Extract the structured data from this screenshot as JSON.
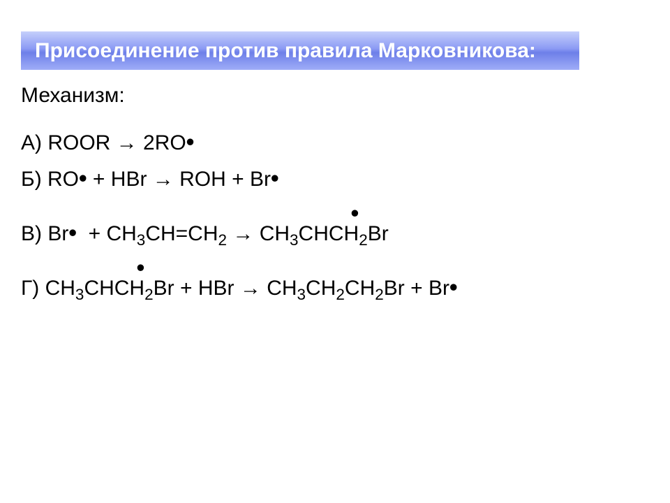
{
  "title_fontsize": 30,
  "content_fontsize": 30,
  "title_bg_gradient": [
    "#c5cffb",
    "#8b9af4",
    "#6d7fe8",
    "#9fadf8"
  ],
  "title_color": "#ffffff",
  "text_color": "#000000",
  "title": "Присоединение против правила Марковникова:",
  "heading": "Механизм:",
  "equations": {
    "a": {
      "label": "А) ",
      "lhs": "ROOR",
      "arrow": " → ",
      "rhs_1": "2RO",
      "radical": "•"
    },
    "b": {
      "label": "Б) ",
      "lhs_1": "RO",
      "plus": " + ",
      "lhs_2": "HBr",
      "arrow": " → ",
      "rhs_1": "ROH",
      "rhs_2": "Br",
      "radical": "•"
    },
    "v": {
      "label": "В) ",
      "lhs_1": "Br",
      "plus": " + ",
      "ch3": "CH",
      "sub3": "3",
      "ch_eq": "CH=CH",
      "sub2": "2",
      "arrow": " → ",
      "rhs_ch": "CHCH",
      "br": "Br",
      "radical": "•"
    },
    "g": {
      "label": "Г) ",
      "ch3": "CH",
      "sub3": "3",
      "chch": "CHCH",
      "sub2": "2",
      "br": "Br",
      "plus": " + ",
      "hbr": "HBr",
      "arrow": " → ",
      "ch2": "CH",
      "radical": "•"
    }
  }
}
